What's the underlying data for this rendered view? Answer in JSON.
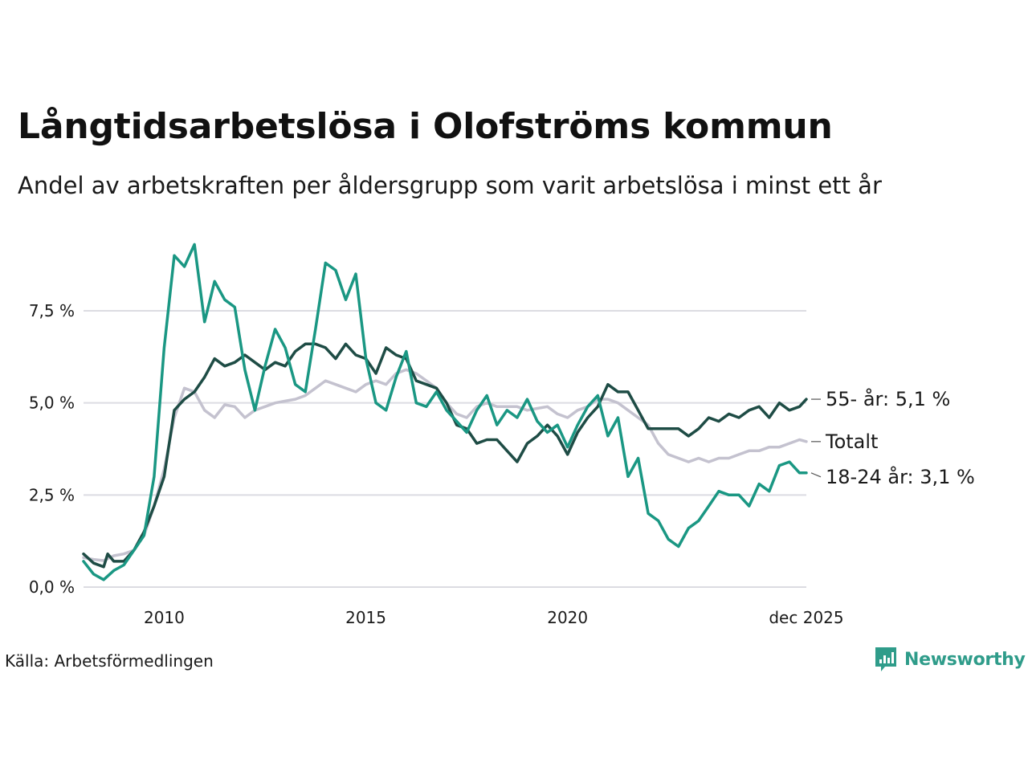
{
  "title": "Långtidsarbetslösa i Olofströms kommun",
  "subtitle": "Andel av arbetskraften per åldersgrupp som varit arbetslösa i minst ett år",
  "source": "Källa: Arbetsförmedlingen",
  "brand": {
    "name": "Newsworthy",
    "icon": "newsworthy-logo-icon",
    "color": "#2f9c8a"
  },
  "chart_data": {
    "type": "line",
    "title": "Långtidsarbetslösa i Olofströms kommun",
    "subtitle": "Andel av arbetskraften per åldersgrupp som varit arbetslösa i minst ett år",
    "xlabel": "",
    "ylabel": "",
    "unit": "%",
    "xlim": [
      2008.0,
      2025.92
    ],
    "ylim": [
      0,
      9.5
    ],
    "grid": true,
    "legend": "direct labels at line ends",
    "x_ticks": [
      {
        "value": 2010,
        "label": "2010"
      },
      {
        "value": 2015,
        "label": "2015"
      },
      {
        "value": 2020,
        "label": "2020"
      },
      {
        "value": 2025.92,
        "label": "dec 2025"
      }
    ],
    "y_ticks": [
      {
        "value": 0,
        "label": "0,0 %"
      },
      {
        "value": 2.5,
        "label": "2,5 %"
      },
      {
        "value": 5,
        "label": "5,0 %"
      },
      {
        "value": 7.5,
        "label": "7,5 %"
      }
    ],
    "series": [
      {
        "name": "Totalt",
        "end_label": "Totalt",
        "color": "#c4c2cf",
        "points": [
          [
            2008.0,
            0.8
          ],
          [
            2008.25,
            0.75
          ],
          [
            2008.5,
            0.72
          ],
          [
            2008.75,
            0.85
          ],
          [
            2009.0,
            0.9
          ],
          [
            2009.25,
            1.0
          ],
          [
            2009.5,
            1.4
          ],
          [
            2009.75,
            2.2
          ],
          [
            2010.0,
            3.2
          ],
          [
            2010.25,
            4.6
          ],
          [
            2010.5,
            5.4
          ],
          [
            2010.75,
            5.3
          ],
          [
            2011.0,
            4.8
          ],
          [
            2011.25,
            4.6
          ],
          [
            2011.5,
            4.95
          ],
          [
            2011.75,
            4.9
          ],
          [
            2012.0,
            4.6
          ],
          [
            2012.25,
            4.8
          ],
          [
            2012.5,
            4.9
          ],
          [
            2012.75,
            5.0
          ],
          [
            2013.0,
            5.05
          ],
          [
            2013.25,
            5.1
          ],
          [
            2013.5,
            5.2
          ],
          [
            2013.75,
            5.4
          ],
          [
            2014.0,
            5.6
          ],
          [
            2014.25,
            5.5
          ],
          [
            2014.5,
            5.4
          ],
          [
            2014.75,
            5.3
          ],
          [
            2015.0,
            5.5
          ],
          [
            2015.25,
            5.6
          ],
          [
            2015.5,
            5.5
          ],
          [
            2015.75,
            5.8
          ],
          [
            2016.0,
            5.9
          ],
          [
            2016.25,
            5.8
          ],
          [
            2016.5,
            5.6
          ],
          [
            2016.75,
            5.4
          ],
          [
            2017.0,
            5.0
          ],
          [
            2017.25,
            4.7
          ],
          [
            2017.5,
            4.6
          ],
          [
            2017.75,
            4.9
          ],
          [
            2018.0,
            5.0
          ],
          [
            2018.25,
            4.9
          ],
          [
            2018.5,
            4.9
          ],
          [
            2018.75,
            4.9
          ],
          [
            2019.0,
            4.8
          ],
          [
            2019.25,
            4.85
          ],
          [
            2019.5,
            4.9
          ],
          [
            2019.75,
            4.7
          ],
          [
            2020.0,
            4.6
          ],
          [
            2020.25,
            4.8
          ],
          [
            2020.5,
            4.9
          ],
          [
            2020.75,
            5.1
          ],
          [
            2021.0,
            5.1
          ],
          [
            2021.25,
            5.0
          ],
          [
            2021.5,
            4.8
          ],
          [
            2021.75,
            4.6
          ],
          [
            2022.0,
            4.4
          ],
          [
            2022.25,
            3.9
          ],
          [
            2022.5,
            3.6
          ],
          [
            2022.75,
            3.5
          ],
          [
            2023.0,
            3.4
          ],
          [
            2023.25,
            3.5
          ],
          [
            2023.5,
            3.4
          ],
          [
            2023.75,
            3.5
          ],
          [
            2024.0,
            3.5
          ],
          [
            2024.25,
            3.6
          ],
          [
            2024.5,
            3.7
          ],
          [
            2024.75,
            3.7
          ],
          [
            2025.0,
            3.8
          ],
          [
            2025.25,
            3.8
          ],
          [
            2025.5,
            3.9
          ],
          [
            2025.75,
            4.0
          ],
          [
            2025.92,
            3.95
          ]
        ]
      },
      {
        "name": "55- år",
        "end_label": "55- år: 5,1 %",
        "color": "#1e4c45",
        "points": [
          [
            2008.0,
            0.9
          ],
          [
            2008.25,
            0.65
          ],
          [
            2008.5,
            0.55
          ],
          [
            2008.6,
            0.9
          ],
          [
            2008.75,
            0.7
          ],
          [
            2009.0,
            0.7
          ],
          [
            2009.25,
            1.0
          ],
          [
            2009.5,
            1.5
          ],
          [
            2009.75,
            2.2
          ],
          [
            2010.0,
            3.0
          ],
          [
            2010.25,
            4.8
          ],
          [
            2010.5,
            5.1
          ],
          [
            2010.75,
            5.3
          ],
          [
            2011.0,
            5.7
          ],
          [
            2011.25,
            6.2
          ],
          [
            2011.5,
            6.0
          ],
          [
            2011.75,
            6.1
          ],
          [
            2012.0,
            6.3
          ],
          [
            2012.25,
            6.1
          ],
          [
            2012.5,
            5.9
          ],
          [
            2012.75,
            6.1
          ],
          [
            2013.0,
            6.0
          ],
          [
            2013.25,
            6.4
          ],
          [
            2013.5,
            6.6
          ],
          [
            2013.75,
            6.6
          ],
          [
            2014.0,
            6.5
          ],
          [
            2014.25,
            6.2
          ],
          [
            2014.5,
            6.6
          ],
          [
            2014.75,
            6.3
          ],
          [
            2015.0,
            6.2
          ],
          [
            2015.25,
            5.8
          ],
          [
            2015.5,
            6.5
          ],
          [
            2015.75,
            6.3
          ],
          [
            2016.0,
            6.2
          ],
          [
            2016.25,
            5.6
          ],
          [
            2016.5,
            5.5
          ],
          [
            2016.75,
            5.4
          ],
          [
            2017.0,
            5.0
          ],
          [
            2017.25,
            4.4
          ],
          [
            2017.5,
            4.3
          ],
          [
            2017.75,
            3.9
          ],
          [
            2018.0,
            4.0
          ],
          [
            2018.25,
            4.0
          ],
          [
            2018.5,
            3.7
          ],
          [
            2018.75,
            3.4
          ],
          [
            2019.0,
            3.9
          ],
          [
            2019.25,
            4.1
          ],
          [
            2019.5,
            4.4
          ],
          [
            2019.75,
            4.1
          ],
          [
            2020.0,
            3.6
          ],
          [
            2020.25,
            4.2
          ],
          [
            2020.5,
            4.6
          ],
          [
            2020.75,
            4.9
          ],
          [
            2021.0,
            5.5
          ],
          [
            2021.25,
            5.3
          ],
          [
            2021.5,
            5.3
          ],
          [
            2021.75,
            4.8
          ],
          [
            2022.0,
            4.3
          ],
          [
            2022.25,
            4.3
          ],
          [
            2022.5,
            4.3
          ],
          [
            2022.75,
            4.3
          ],
          [
            2023.0,
            4.1
          ],
          [
            2023.25,
            4.3
          ],
          [
            2023.5,
            4.6
          ],
          [
            2023.75,
            4.5
          ],
          [
            2024.0,
            4.7
          ],
          [
            2024.25,
            4.6
          ],
          [
            2024.5,
            4.8
          ],
          [
            2024.75,
            4.9
          ],
          [
            2025.0,
            4.6
          ],
          [
            2025.25,
            5.0
          ],
          [
            2025.5,
            4.8
          ],
          [
            2025.75,
            4.9
          ],
          [
            2025.92,
            5.1
          ]
        ]
      },
      {
        "name": "18-24 år",
        "end_label": "18-24 år: 3,1 %",
        "color": "#1a9783",
        "points": [
          [
            2008.0,
            0.7
          ],
          [
            2008.25,
            0.35
          ],
          [
            2008.5,
            0.2
          ],
          [
            2008.75,
            0.45
          ],
          [
            2009.0,
            0.6
          ],
          [
            2009.25,
            1.0
          ],
          [
            2009.5,
            1.4
          ],
          [
            2009.75,
            3.0
          ],
          [
            2010.0,
            6.5
          ],
          [
            2010.25,
            9.0
          ],
          [
            2010.5,
            8.7
          ],
          [
            2010.75,
            9.3
          ],
          [
            2011.0,
            7.2
          ],
          [
            2011.25,
            8.3
          ],
          [
            2011.5,
            7.8
          ],
          [
            2011.75,
            7.6
          ],
          [
            2012.0,
            5.9
          ],
          [
            2012.25,
            4.8
          ],
          [
            2012.5,
            6.0
          ],
          [
            2012.75,
            7.0
          ],
          [
            2013.0,
            6.5
          ],
          [
            2013.25,
            5.5
          ],
          [
            2013.5,
            5.3
          ],
          [
            2013.75,
            7.0
          ],
          [
            2014.0,
            8.8
          ],
          [
            2014.25,
            8.6
          ],
          [
            2014.5,
            7.8
          ],
          [
            2014.75,
            8.5
          ],
          [
            2015.0,
            6.2
          ],
          [
            2015.25,
            5.0
          ],
          [
            2015.5,
            4.8
          ],
          [
            2015.75,
            5.7
          ],
          [
            2016.0,
            6.4
          ],
          [
            2016.25,
            5.0
          ],
          [
            2016.5,
            4.9
          ],
          [
            2016.75,
            5.3
          ],
          [
            2017.0,
            4.8
          ],
          [
            2017.25,
            4.5
          ],
          [
            2017.5,
            4.2
          ],
          [
            2017.75,
            4.8
          ],
          [
            2018.0,
            5.2
          ],
          [
            2018.25,
            4.4
          ],
          [
            2018.5,
            4.8
          ],
          [
            2018.75,
            4.6
          ],
          [
            2019.0,
            5.1
          ],
          [
            2019.25,
            4.5
          ],
          [
            2019.5,
            4.2
          ],
          [
            2019.75,
            4.4
          ],
          [
            2020.0,
            3.8
          ],
          [
            2020.25,
            4.4
          ],
          [
            2020.5,
            4.9
          ],
          [
            2020.75,
            5.2
          ],
          [
            2021.0,
            4.1
          ],
          [
            2021.25,
            4.6
          ],
          [
            2021.5,
            3.0
          ],
          [
            2021.75,
            3.5
          ],
          [
            2022.0,
            2.0
          ],
          [
            2022.25,
            1.8
          ],
          [
            2022.5,
            1.3
          ],
          [
            2022.75,
            1.1
          ],
          [
            2023.0,
            1.6
          ],
          [
            2023.25,
            1.8
          ],
          [
            2023.5,
            2.2
          ],
          [
            2023.75,
            2.6
          ],
          [
            2024.0,
            2.5
          ],
          [
            2024.25,
            2.5
          ],
          [
            2024.5,
            2.2
          ],
          [
            2024.75,
            2.8
          ],
          [
            2025.0,
            2.6
          ],
          [
            2025.25,
            3.3
          ],
          [
            2025.5,
            3.4
          ],
          [
            2025.75,
            3.1
          ],
          [
            2025.92,
            3.1
          ]
        ]
      }
    ]
  }
}
